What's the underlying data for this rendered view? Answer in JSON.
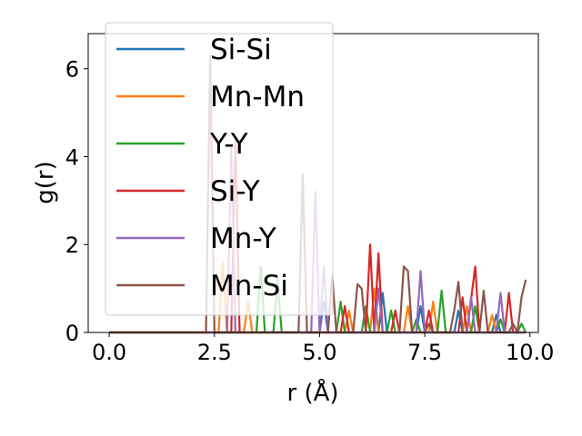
{
  "chart_data": {
    "type": "line",
    "title": "",
    "xlabel": "r (Å)",
    "ylabel": "g(r)",
    "xlim": [
      -0.5,
      10.2
    ],
    "ylim": [
      0,
      6.8
    ],
    "xticks": [
      0.0,
      2.5,
      5.0,
      7.5,
      10.0
    ],
    "xtick_labels": [
      "0.0",
      "2.5",
      "5.0",
      "7.5",
      "10.0"
    ],
    "yticks": [
      0,
      2,
      4,
      6
    ],
    "ytick_labels": [
      "0",
      "2",
      "4",
      "6"
    ],
    "grid": false,
    "legend_position": "top-left",
    "series": [
      {
        "name": "Si-Si",
        "color": "#1f77b4",
        "points": [
          [
            0,
            0
          ],
          [
            5.0,
            0
          ],
          [
            5.1,
            0.7
          ],
          [
            5.2,
            0
          ],
          [
            6.4,
            0
          ],
          [
            6.5,
            0.9
          ],
          [
            6.6,
            0
          ],
          [
            7.3,
            0
          ],
          [
            7.4,
            0.6
          ],
          [
            7.5,
            0
          ],
          [
            8.2,
            0
          ],
          [
            8.3,
            0.5
          ],
          [
            8.4,
            0
          ],
          [
            9.1,
            0
          ],
          [
            9.2,
            0.4
          ],
          [
            9.3,
            0
          ],
          [
            9.9,
            0
          ]
        ]
      },
      {
        "name": "Mn-Mn",
        "color": "#ff7f0e",
        "points": [
          [
            0,
            0
          ],
          [
            2.6,
            0
          ],
          [
            2.7,
            1.6
          ],
          [
            2.8,
            0
          ],
          [
            3.2,
            0
          ],
          [
            3.3,
            0.7
          ],
          [
            3.4,
            0
          ],
          [
            5.6,
            0
          ],
          [
            5.7,
            0.5
          ],
          [
            5.8,
            0
          ],
          [
            6.2,
            0
          ],
          [
            6.3,
            1.0
          ],
          [
            6.4,
            0
          ],
          [
            7.0,
            0
          ],
          [
            7.1,
            0.6
          ],
          [
            7.2,
            0
          ],
          [
            7.6,
            0
          ],
          [
            7.7,
            0.7
          ],
          [
            7.8,
            0
          ],
          [
            8.4,
            0
          ],
          [
            8.5,
            0.6
          ],
          [
            8.6,
            0
          ],
          [
            9.0,
            0
          ],
          [
            9.1,
            0.4
          ],
          [
            9.2,
            0
          ],
          [
            9.9,
            0
          ]
        ]
      },
      {
        "name": "Y-Y",
        "color": "#2ca02c",
        "points": [
          [
            0,
            0
          ],
          [
            3.5,
            0
          ],
          [
            3.6,
            1.5
          ],
          [
            3.7,
            0
          ],
          [
            3.9,
            0
          ],
          [
            4.0,
            1.2
          ],
          [
            4.1,
            0
          ],
          [
            5.4,
            0
          ],
          [
            5.5,
            0.7
          ],
          [
            5.6,
            0
          ],
          [
            6.0,
            0
          ],
          [
            6.1,
            0.6
          ],
          [
            6.2,
            0
          ],
          [
            6.6,
            0
          ],
          [
            6.7,
            0.5
          ],
          [
            6.8,
            0
          ],
          [
            7.2,
            0
          ],
          [
            7.3,
            0.3
          ],
          [
            7.4,
            0
          ],
          [
            7.8,
            0
          ],
          [
            7.9,
            0.95
          ],
          [
            8.0,
            0
          ],
          [
            8.6,
            0
          ],
          [
            8.7,
            0.6
          ],
          [
            8.8,
            0
          ],
          [
            9.2,
            0
          ],
          [
            9.3,
            0.3
          ],
          [
            9.4,
            0
          ],
          [
            9.7,
            0
          ],
          [
            9.8,
            0.2
          ],
          [
            9.9,
            0
          ]
        ]
      },
      {
        "name": "Si-Y",
        "color": "#d62728",
        "points": [
          [
            0,
            0
          ],
          [
            2.9,
            0
          ],
          [
            3.0,
            4.4
          ],
          [
            3.1,
            0
          ],
          [
            5.5,
            0
          ],
          [
            5.6,
            0.6
          ],
          [
            5.7,
            0
          ],
          [
            6.1,
            0
          ],
          [
            6.2,
            2.0
          ],
          [
            6.3,
            0
          ],
          [
            6.4,
            1.8
          ],
          [
            6.5,
            0
          ],
          [
            6.7,
            0
          ],
          [
            6.8,
            0.5
          ],
          [
            6.9,
            0
          ],
          [
            7.5,
            0
          ],
          [
            7.6,
            0.5
          ],
          [
            7.7,
            0
          ],
          [
            8.3,
            0
          ],
          [
            8.4,
            0.8
          ],
          [
            8.5,
            0
          ],
          [
            8.7,
            1.5
          ],
          [
            8.8,
            0
          ],
          [
            9.4,
            0
          ],
          [
            9.5,
            0.9
          ],
          [
            9.6,
            0
          ],
          [
            9.9,
            0
          ]
        ]
      },
      {
        "name": "Mn-Y",
        "color": "#9467bd",
        "points": [
          [
            0,
            0
          ],
          [
            2.8,
            0
          ],
          [
            2.9,
            4.2
          ],
          [
            3.0,
            0
          ],
          [
            4.8,
            0
          ],
          [
            4.9,
            3.2
          ],
          [
            5.0,
            0
          ],
          [
            5.1,
            1.5
          ],
          [
            5.2,
            0
          ],
          [
            6.3,
            0
          ],
          [
            6.4,
            1.0
          ],
          [
            6.5,
            0
          ],
          [
            7.3,
            0
          ],
          [
            7.4,
            1.4
          ],
          [
            7.5,
            0
          ],
          [
            8.5,
            0
          ],
          [
            8.6,
            0.8
          ],
          [
            8.7,
            0
          ],
          [
            9.2,
            0
          ],
          [
            9.3,
            0.9
          ],
          [
            9.4,
            0
          ],
          [
            9.9,
            0
          ]
        ]
      },
      {
        "name": "Mn-Si",
        "color": "#8c564b",
        "points": [
          [
            0,
            0
          ],
          [
            2.3,
            0
          ],
          [
            2.4,
            6.3
          ],
          [
            2.5,
            0
          ],
          [
            4.5,
            0
          ],
          [
            4.6,
            3.6
          ],
          [
            4.7,
            0
          ],
          [
            5.2,
            0
          ],
          [
            5.3,
            1.3
          ],
          [
            5.4,
            0
          ],
          [
            5.8,
            0
          ],
          [
            5.9,
            1.1
          ],
          [
            6.0,
            1.0
          ],
          [
            6.1,
            0
          ],
          [
            6.9,
            0
          ],
          [
            7.0,
            1.5
          ],
          [
            7.1,
            1.4
          ],
          [
            7.2,
            0
          ],
          [
            7.5,
            0
          ],
          [
            7.6,
            0.2
          ],
          [
            7.7,
            0
          ],
          [
            8.1,
            0
          ],
          [
            8.2,
            0.5
          ],
          [
            8.3,
            1.15
          ],
          [
            8.4,
            0
          ],
          [
            8.8,
            0
          ],
          [
            8.9,
            0.95
          ],
          [
            9.0,
            0
          ],
          [
            9.5,
            0
          ],
          [
            9.6,
            0.2
          ],
          [
            9.7,
            0
          ],
          [
            9.8,
            0.8
          ],
          [
            9.9,
            1.2
          ]
        ]
      }
    ]
  }
}
